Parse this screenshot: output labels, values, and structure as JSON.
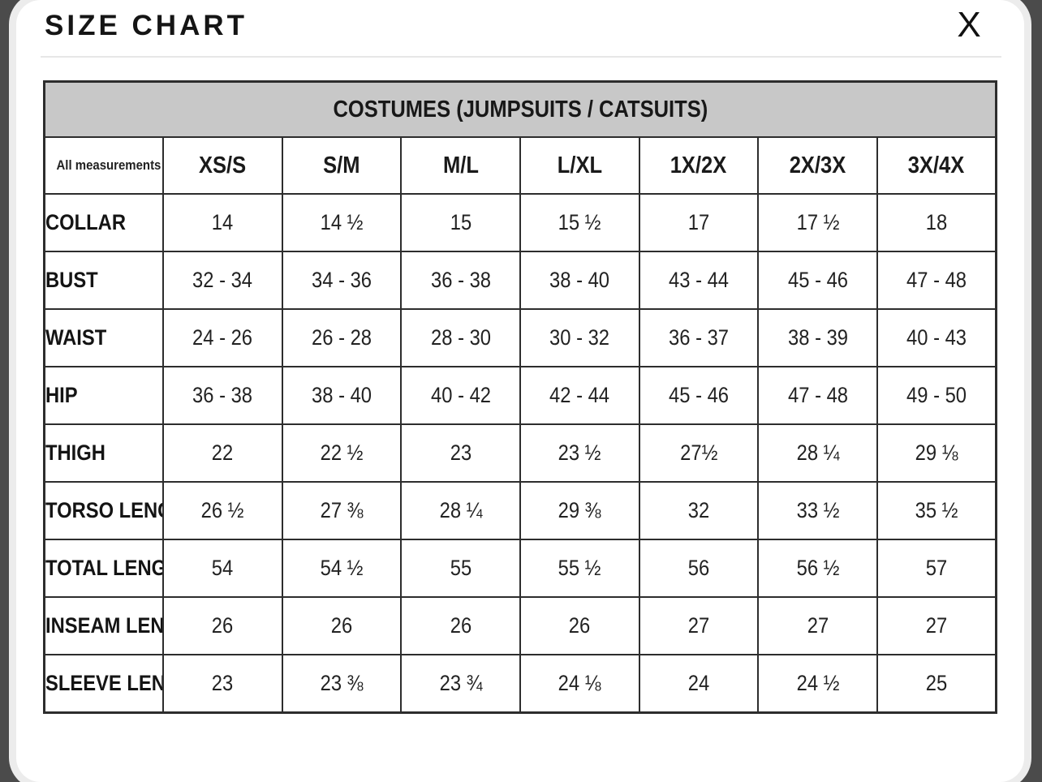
{
  "modal": {
    "title": "SIZE CHART",
    "close_label": "X"
  },
  "table": {
    "caption": "COSTUMES (JUMPSUITS / CATSUITS)",
    "corner_note": "All measurements in inches",
    "size_columns": [
      "XS/S",
      "S/M",
      "M/L",
      "L/XL",
      "1X/2X",
      "2X/3X",
      "3X/4X"
    ],
    "rows": [
      {
        "label": "COLLAR",
        "values": [
          "14",
          "14 ½",
          "15",
          "15 ½",
          "17",
          "17 ½",
          "18"
        ]
      },
      {
        "label": "BUST",
        "values": [
          "32 - 34",
          "34 - 36",
          "36 - 38",
          "38 - 40",
          "43 - 44",
          "45 - 46",
          "47 - 48"
        ]
      },
      {
        "label": "WAIST",
        "values": [
          "24 - 26",
          "26 - 28",
          "28 - 30",
          "30 - 32",
          "36 - 37",
          "38 - 39",
          "40 - 43"
        ]
      },
      {
        "label": "HIP",
        "values": [
          "36 - 38",
          "38 - 40",
          "40 - 42",
          "42 - 44",
          "45 - 46",
          "47 - 48",
          "49 - 50"
        ]
      },
      {
        "label": "THIGH",
        "values": [
          "22",
          "22 ½",
          "23",
          "23 ½",
          "27½",
          "28 ¼",
          "29 ⅛"
        ]
      },
      {
        "label": "TORSO LENGTH",
        "values": [
          "26 ½",
          "27 ⅜",
          "28 ¼",
          "29 ⅜",
          "32",
          "33 ½",
          "35 ½"
        ]
      },
      {
        "label": "TOTAL LENGTH",
        "values": [
          "54",
          "54 ½",
          "55",
          "55 ½",
          "56",
          "56 ½",
          "57"
        ]
      },
      {
        "label": "INSEAM LENGTH",
        "values": [
          "26",
          "26",
          "26",
          "26",
          "27",
          "27",
          "27"
        ]
      },
      {
        "label": "SLEEVE LENGTH",
        "values": [
          "23",
          "23 ⅜",
          "23 ¾",
          "24 ⅛",
          "24",
          "24 ½",
          "25"
        ]
      }
    ]
  },
  "colors": {
    "backdrop": "#4b4b4b",
    "modal_background": "#ffffff",
    "modal_rim": "#ececec",
    "header_band": "#c8c8c8",
    "table_border": "#2d2d2d",
    "divider": "#e7e7e7",
    "text": "#151515"
  }
}
